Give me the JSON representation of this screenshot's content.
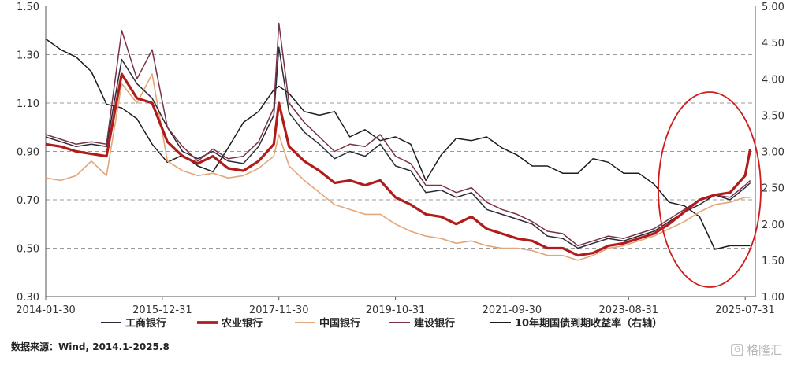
{
  "chart_data": {
    "type": "line",
    "title": "",
    "xlabel": "",
    "ylabel": "",
    "ylim": [
      0.3,
      1.5
    ],
    "y2lim": [
      1.0,
      5.0
    ],
    "y_ticks": [
      "1.50",
      "1.30",
      "1.10",
      "0.90",
      "0.70",
      "0.50",
      "0.30"
    ],
    "y2_ticks": [
      "5.00",
      "4.50",
      "4.00",
      "3.50",
      "3.00",
      "2.50",
      "2.00",
      "1.50",
      "1.00"
    ],
    "x_ticks": [
      "2014-01-30",
      "2015-12-31",
      "2017-11-30",
      "2019-10-31",
      "2021-09-30",
      "2023-08-31",
      "2025-07-31"
    ],
    "x_range": [
      "2014-01",
      "2025-09"
    ],
    "grid": "horizontal dashed",
    "legend_position": "bottom",
    "x": [
      "2014-01",
      "2014-04",
      "2014-07",
      "2014-10",
      "2015-01",
      "2015-04",
      "2015-07",
      "2015-10",
      "2016-01",
      "2016-04",
      "2016-07",
      "2016-10",
      "2017-01",
      "2017-04",
      "2017-07",
      "2017-10",
      "2017-11",
      "2018-01",
      "2018-04",
      "2018-07",
      "2018-10",
      "2019-01",
      "2019-04",
      "2019-07",
      "2019-10",
      "2020-01",
      "2020-04",
      "2020-07",
      "2020-10",
      "2021-01",
      "2021-04",
      "2021-07",
      "2021-10",
      "2022-01",
      "2022-04",
      "2022-07",
      "2022-10",
      "2023-01",
      "2023-04",
      "2023-07",
      "2023-10",
      "2024-01",
      "2024-04",
      "2024-07",
      "2024-10",
      "2025-01",
      "2025-04",
      "2025-07",
      "2025-08"
    ],
    "series": [
      {
        "name": "工商银行",
        "axis": "left",
        "color": "#2b2a3a",
        "width": 1.5,
        "values": [
          0.96,
          0.94,
          0.92,
          0.93,
          0.92,
          1.28,
          1.18,
          1.12,
          1.0,
          0.9,
          0.87,
          0.9,
          0.86,
          0.85,
          0.92,
          1.05,
          1.33,
          1.06,
          0.98,
          0.93,
          0.87,
          0.9,
          0.88,
          0.93,
          0.84,
          0.82,
          0.73,
          0.74,
          0.71,
          0.73,
          0.66,
          0.64,
          0.62,
          0.6,
          0.55,
          0.54,
          0.5,
          0.52,
          0.54,
          0.53,
          0.55,
          0.57,
          0.61,
          0.65,
          0.68,
          0.72,
          0.7,
          0.75,
          0.77
        ]
      },
      {
        "name": "农业银行",
        "axis": "left",
        "color": "#b01c1c",
        "width": 3.2,
        "values": [
          0.93,
          0.92,
          0.9,
          0.89,
          0.88,
          1.22,
          1.12,
          1.1,
          0.94,
          0.88,
          0.85,
          0.88,
          0.83,
          0.82,
          0.86,
          0.93,
          1.1,
          0.92,
          0.86,
          0.82,
          0.77,
          0.78,
          0.76,
          0.78,
          0.71,
          0.68,
          0.64,
          0.63,
          0.6,
          0.63,
          0.58,
          0.56,
          0.54,
          0.53,
          0.5,
          0.5,
          0.47,
          0.48,
          0.51,
          0.52,
          0.54,
          0.56,
          0.6,
          0.65,
          0.7,
          0.72,
          0.73,
          0.8,
          0.91
        ]
      },
      {
        "name": "中国银行",
        "axis": "left",
        "color": "#e3a679",
        "width": 1.6,
        "values": [
          0.79,
          0.78,
          0.8,
          0.86,
          0.8,
          1.18,
          1.1,
          1.22,
          0.86,
          0.82,
          0.8,
          0.81,
          0.79,
          0.8,
          0.83,
          0.88,
          0.97,
          0.84,
          0.78,
          0.73,
          0.68,
          0.66,
          0.64,
          0.64,
          0.6,
          0.57,
          0.55,
          0.54,
          0.52,
          0.53,
          0.51,
          0.5,
          0.5,
          0.49,
          0.47,
          0.47,
          0.45,
          0.47,
          0.5,
          0.51,
          0.53,
          0.55,
          0.58,
          0.61,
          0.65,
          0.68,
          0.69,
          0.71,
          0.71
        ]
      },
      {
        "name": "建设银行",
        "axis": "left",
        "color": "#7a3245",
        "width": 1.5,
        "values": [
          0.97,
          0.95,
          0.93,
          0.94,
          0.93,
          1.4,
          1.2,
          1.32,
          1.0,
          0.92,
          0.86,
          0.91,
          0.87,
          0.88,
          0.94,
          1.08,
          1.43,
          1.1,
          1.02,
          0.96,
          0.9,
          0.93,
          0.92,
          0.97,
          0.88,
          0.85,
          0.76,
          0.76,
          0.73,
          0.75,
          0.69,
          0.66,
          0.64,
          0.61,
          0.57,
          0.56,
          0.51,
          0.53,
          0.55,
          0.54,
          0.56,
          0.58,
          0.62,
          0.66,
          0.7,
          0.72,
          0.71,
          0.76,
          0.78
        ]
      },
      {
        "name": "10年期国债到期收益率（右轴）",
        "axis": "right",
        "color": "#1c1c1c",
        "width": 1.5,
        "values": [
          4.55,
          4.4,
          4.3,
          4.1,
          3.65,
          3.6,
          3.45,
          3.1,
          2.85,
          2.95,
          2.8,
          2.72,
          3.05,
          3.4,
          3.55,
          3.85,
          3.9,
          3.8,
          3.55,
          3.5,
          3.55,
          3.2,
          3.3,
          3.15,
          3.2,
          3.1,
          2.6,
          2.95,
          3.18,
          3.15,
          3.2,
          3.05,
          2.95,
          2.8,
          2.8,
          2.7,
          2.7,
          2.9,
          2.85,
          2.7,
          2.7,
          2.55,
          2.3,
          2.25,
          2.1,
          1.65,
          1.7,
          1.7,
          1.7
        ]
      }
    ]
  },
  "footer": {
    "source_label": "数据来源：Wind, 2014.1-2025.8",
    "watermark_text": "格隆汇"
  },
  "annotation": {
    "shape": "ellipse",
    "color": "#d01c1c"
  }
}
